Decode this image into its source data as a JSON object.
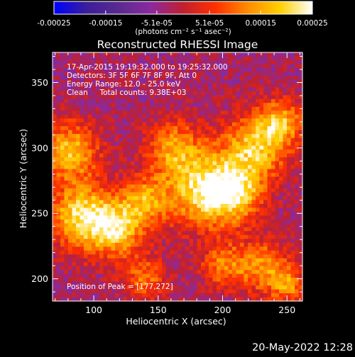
{
  "chart_data": {
    "type": "heatmap",
    "title": "Reconstructed RHESSI Image",
    "xlabel": "Heliocentric X (arcsec)",
    "ylabel": "Heliocentric Y (arcsec)",
    "xlim": [
      68,
      262
    ],
    "ylim": [
      183,
      373
    ],
    "xticks": [
      100,
      150,
      200,
      250
    ],
    "yticks": [
      200,
      250,
      300,
      350
    ],
    "colorbar": {
      "ticks": [
        "-0.00025",
        "-0.00015",
        "-5.1e-05",
        "5.1e-05",
        "0.00015",
        "0.00025"
      ],
      "tick_values": [
        -0.00025,
        -0.00015,
        -5.1e-05,
        5.1e-05,
        0.00015,
        0.00025
      ],
      "unit_label": "(photons cm⁻² s⁻¹ asec⁻²)",
      "range": [
        -0.00025,
        0.00025
      ],
      "colors": [
        "#0000ff",
        "#3a1e9a",
        "#5a2a8e",
        "#8a2aa0",
        "#c02030",
        "#ff3000",
        "#ff8c00",
        "#ffd000",
        "#ffffff"
      ]
    },
    "annotations": {
      "line1": "17-Apr-2015 19:19:32.000 to 19:25:32.000",
      "line2": "Detectors: 3F 5F 6F 7F 8F 9F, Att 0",
      "line3": "Energy Range: 12.0 - 25.0 keV",
      "line4": "Clean     Total counts: 9.38E+03",
      "peak": "Position of Peak = [177,272]"
    },
    "peak_position": [
      177,
      272
    ],
    "hotspots": [
      {
        "x": 185,
        "y": 268,
        "amp": 0.00024,
        "spread": 20
      },
      {
        "x": 225,
        "y": 300,
        "amp": 0.00021,
        "spread": 18
      },
      {
        "x": 245,
        "y": 320,
        "amp": 0.00017,
        "spread": 12
      },
      {
        "x": 82,
        "y": 298,
        "amp": 0.00021,
        "spread": 15
      },
      {
        "x": 90,
        "y": 248,
        "amp": 0.00023,
        "spread": 18
      },
      {
        "x": 118,
        "y": 238,
        "amp": 0.0002,
        "spread": 15
      },
      {
        "x": 140,
        "y": 260,
        "amp": 0.00016,
        "spread": 13
      },
      {
        "x": 162,
        "y": 300,
        "amp": 0.00016,
        "spread": 15
      },
      {
        "x": 210,
        "y": 265,
        "amp": 0.00018,
        "spread": 15
      },
      {
        "x": 230,
        "y": 210,
        "amp": 0.00016,
        "spread": 14
      },
      {
        "x": 200,
        "y": 210,
        "amp": 0.00014,
        "spread": 12
      },
      {
        "x": 250,
        "y": 195,
        "amp": 0.00015,
        "spread": 10
      },
      {
        "x": 140,
        "y": 200,
        "amp": 0.00013,
        "spread": 12
      }
    ],
    "background_level": -3e-05,
    "grid": false
  },
  "footer": {
    "date": "20-May-2022 12:28"
  }
}
